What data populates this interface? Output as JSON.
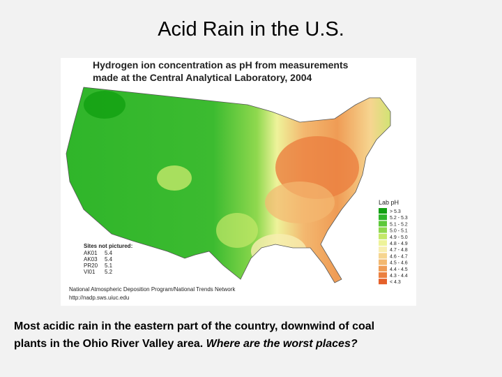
{
  "title": "Acid Rain in the U.S.",
  "map": {
    "heading": [
      "Hydrogen ion concentration as pH from measurements",
      "made at the Central Analytical Laboratory, 2004"
    ],
    "legend": {
      "title": "Lab pH",
      "items": [
        {
          "label": "> 5.3",
          "color": "#12a012"
        },
        {
          "label": "5.2 - 5.3",
          "color": "#2fb52a"
        },
        {
          "label": "5.1 - 5.2",
          "color": "#5cc83a"
        },
        {
          "label": "5.0 - 5.1",
          "color": "#8fd84e"
        },
        {
          "label": "4.9 - 5.0",
          "color": "#c4e86a"
        },
        {
          "label": "4.8 - 4.9",
          "color": "#eef39a"
        },
        {
          "label": "4.7 - 4.8",
          "color": "#f8eeb0"
        },
        {
          "label": "4.6 - 4.7",
          "color": "#f6d590"
        },
        {
          "label": "4.5 - 4.6",
          "color": "#f3b870"
        },
        {
          "label": "4.4 - 4.5",
          "color": "#ef9c55"
        },
        {
          "label": "4.3 - 4.4",
          "color": "#eb8040"
        },
        {
          "label": "< 4.3",
          "color": "#e5602a"
        }
      ]
    },
    "sites_not_pictured": {
      "title": "Sites not pictured:",
      "rows": [
        [
          "AK01",
          "5.4"
        ],
        [
          "AK03",
          "5.4"
        ],
        [
          "PR20",
          "5.1"
        ],
        [
          "VI01",
          "5.2"
        ]
      ]
    },
    "source": [
      "National Atmospheric Deposition Program/National Trends Network",
      "http://nadp.sws.uiuc.edu"
    ]
  },
  "caption": {
    "line1": "Most acidic rain in the eastern part of the country, downwind of coal",
    "line2": "plants in the Ohio River Valley area. ",
    "line2_italic": "Where are the worst places?"
  }
}
